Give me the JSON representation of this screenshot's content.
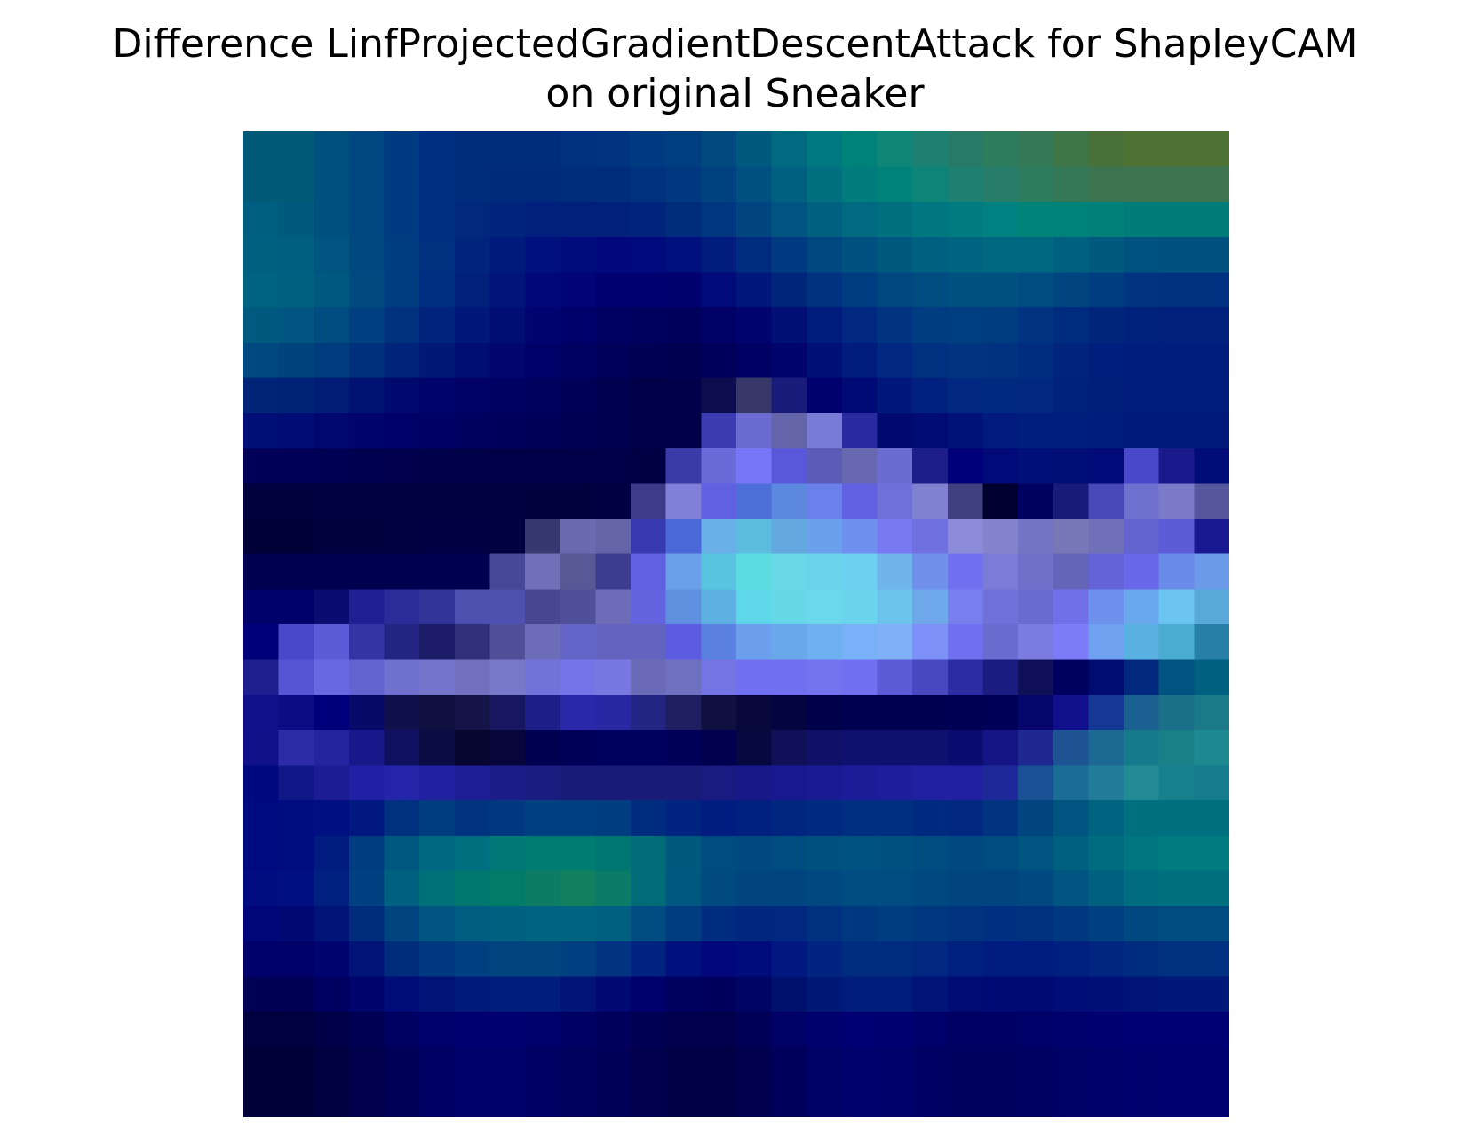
{
  "figure": {
    "title_line1": "Difference LinfProjectedGradientDescentAttack for ShapleyCAM",
    "title_line2": "on original Sneaker"
  },
  "image": {
    "description_name": "sneaker-attack-difference-heatmap",
    "grid_size": [
      28,
      28
    ],
    "grid_colors": [
      [
        "#005a78",
        "#005a78",
        "#00507e",
        "#004680",
        "#003a80",
        "#002e80",
        "#002c7c",
        "#002c7c",
        "#002c7c",
        "#003080",
        "#003480",
        "#003a80",
        "#003e80",
        "#004a80",
        "#005a80",
        "#006a80",
        "#007880",
        "#008278",
        "#0f8678",
        "#1e8070",
        "#287a68",
        "#2e7c5e",
        "#347858",
        "#3e7648",
        "#487038",
        "#4e7234",
        "#4e7234",
        "#4e7234"
      ],
      [
        "#005a78",
        "#005a78",
        "#00507e",
        "#004680",
        "#003a80",
        "#002e80",
        "#002c7c",
        "#002a7c",
        "#002a7c",
        "#002c7c",
        "#002e7c",
        "#003280",
        "#003880",
        "#004280",
        "#005080",
        "#006080",
        "#007080",
        "#007c7c",
        "#008278",
        "#0e8478",
        "#1e8070",
        "#287c6a",
        "#2e7c60",
        "#347858",
        "#3c7450",
        "#3e7450",
        "#3e7450",
        "#3e7450"
      ],
      [
        "#005e80",
        "#005a7e",
        "#00507e",
        "#004680",
        "#003a80",
        "#002e80",
        "#00287c",
        "#00247c",
        "#00207c",
        "#00207c",
        "#00207c",
        "#00247c",
        "#002c7c",
        "#003680",
        "#004480",
        "#005480",
        "#006080",
        "#006a80",
        "#007080",
        "#007680",
        "#007c80",
        "#008080",
        "#008278",
        "#008278",
        "#008078",
        "#007c78",
        "#007c78",
        "#007c78"
      ],
      [
        "#006080",
        "#005e80",
        "#005480",
        "#004880",
        "#003c80",
        "#003080",
        "#00247c",
        "#001a7c",
        "#00107c",
        "#000c7c",
        "#00087c",
        "#000a7c",
        "#00107c",
        "#001c7c",
        "#002c80",
        "#003a80",
        "#004680",
        "#005080",
        "#005a80",
        "#006080",
        "#006480",
        "#006880",
        "#006880",
        "#006080",
        "#005a80",
        "#005280",
        "#005080",
        "#005080"
      ],
      [
        "#006480",
        "#006080",
        "#005880",
        "#004a80",
        "#003c80",
        "#002e80",
        "#00207c",
        "#00147c",
        "#000878",
        "#000474",
        "#000070",
        "#000070",
        "#00006e",
        "#000a78",
        "#00187c",
        "#00267c",
        "#003280",
        "#003c80",
        "#004680",
        "#004c80",
        "#005080",
        "#005080",
        "#004c80",
        "#004480",
        "#003c80",
        "#003480",
        "#003080",
        "#003080"
      ],
      [
        "#005a80",
        "#005680",
        "#004c80",
        "#004080",
        "#00327e",
        "#00247c",
        "#001878",
        "#000e74",
        "#000470",
        "#00006a",
        "#000062",
        "#00005e",
        "#00005c",
        "#000066",
        "#00046e",
        "#001074",
        "#001c7c",
        "#002880",
        "#003480",
        "#003c80",
        "#003e80",
        "#003c80",
        "#003480",
        "#002c80",
        "#00267c",
        "#00227c",
        "#00207c",
        "#00207c"
      ],
      [
        "#004880",
        "#00447e",
        "#003c7e",
        "#00307c",
        "#00247a",
        "#001876",
        "#000e72",
        "#00066e",
        "#000068",
        "#000062",
        "#00005a",
        "#000054",
        "#000052",
        "#00005a",
        "#000064",
        "#00046c",
        "#001076",
        "#001c7c",
        "#002880",
        "#003080",
        "#003480",
        "#003280",
        "#002c80",
        "#00247c",
        "#001e7c",
        "#001c7c",
        "#001c7c",
        "#001c7c"
      ],
      [
        "#002478",
        "#002276",
        "#001c74",
        "#001272",
        "#000a6e",
        "#00046a",
        "#000066",
        "#000062",
        "#00005e",
        "#000058",
        "#000050",
        "#000048",
        "#00004a",
        "#0c0c4e",
        "#383868",
        "#1a1a7a",
        "#00006e",
        "#000a76",
        "#00187c",
        "#00227e",
        "#002880",
        "#002a80",
        "#00287e",
        "#00227c",
        "#001e7a",
        "#001c7a",
        "#001c7a",
        "#001c7a"
      ],
      [
        "#000e78",
        "#000c74",
        "#000870",
        "#00046c",
        "#000068",
        "#000064",
        "#000060",
        "#00005c",
        "#000058",
        "#000054",
        "#000050",
        "#000048",
        "#00004a",
        "#3c3cb0",
        "#6a6ad0",
        "#6464a8",
        "#7a7ad8",
        "#2a2aa0",
        "#000a6e",
        "#000c74",
        "#00127a",
        "#001a7e",
        "#001e7e",
        "#001e7c",
        "#001c7c",
        "#001a7a",
        "#001a7a",
        "#001a7a"
      ],
      [
        "#000058",
        "#000058",
        "#000054",
        "#000050",
        "#00004c",
        "#000048",
        "#000048",
        "#000048",
        "#000048",
        "#000048",
        "#000048",
        "#000044",
        "#3a3aa8",
        "#6a6ad8",
        "#7676f8",
        "#5858d8",
        "#5c5cb8",
        "#6868b0",
        "#6c6cd0",
        "#1e1e8a",
        "#00007a",
        "#000a78",
        "#00107a",
        "#000e78",
        "#000a78",
        "#4848c8",
        "#1a1a8c",
        "#000c78"
      ],
      [
        "#00003c",
        "#00003c",
        "#000040",
        "#000040",
        "#000040",
        "#000040",
        "#000040",
        "#000040",
        "#00003c",
        "#00003c",
        "#000044",
        "#3c3c88",
        "#8080d8",
        "#6060e0",
        "#4c70d8",
        "#5c88e0",
        "#6c80ec",
        "#6060e0",
        "#7070d8",
        "#8080d0",
        "#404080",
        "#000030",
        "#000060",
        "#1a1a7a",
        "#4848b8",
        "#7070d0",
        "#7a7ac8",
        "#56569c"
      ],
      [
        "#000038",
        "#000038",
        "#00003c",
        "#00003c",
        "#000040",
        "#000044",
        "#000044",
        "#000040",
        "#383870",
        "#6a6ab0",
        "#6464a8",
        "#3a3ab0",
        "#4a68d8",
        "#6ab0e8",
        "#5cbce0",
        "#64a8e0",
        "#6aa0ec",
        "#7090f0",
        "#7878f0",
        "#7070e0",
        "#8c8cd8",
        "#8484cc",
        "#7474c4",
        "#7878b8",
        "#7070b8",
        "#6464d0",
        "#5c5cd8",
        "#181890"
      ],
      [
        "#000050",
        "#000050",
        "#000050",
        "#000050",
        "#000050",
        "#000050",
        "#000050",
        "#484898",
        "#7070b8",
        "#585894",
        "#3c3c90",
        "#6060e0",
        "#6aa0e8",
        "#58c4e0",
        "#5cdce0",
        "#6ad8e8",
        "#6ad4ec",
        "#6cd0f0",
        "#70b4ec",
        "#7090ec",
        "#7070f0",
        "#7c7cd8",
        "#7070c8",
        "#6464b8",
        "#6464d8",
        "#6868e8",
        "#6a8ce8",
        "#6a9ae8"
      ],
      [
        "#00006a",
        "#000068",
        "#0c0c70",
        "#202094",
        "#2c2c98",
        "#343498",
        "#5050b0",
        "#5050b0",
        "#484890",
        "#505098",
        "#6c6cb8",
        "#6464e0",
        "#6090e0",
        "#5eb0e0",
        "#5ed8e8",
        "#66d8e8",
        "#6cd8ec",
        "#6ad4ec",
        "#6cc4ec",
        "#70a8ec",
        "#7880f0",
        "#7070d8",
        "#6a6ad0",
        "#7070e8",
        "#6c90ec",
        "#6aa8ee",
        "#6cc4f0",
        "#5aa8d8"
      ],
      [
        "#00007a",
        "#4848c8",
        "#5c5cd8",
        "#3434a4",
        "#242484",
        "#1c1c68",
        "#303078",
        "#505098",
        "#6c6cb8",
        "#6464c8",
        "#6464c0",
        "#6464c0",
        "#5c5ce0",
        "#5a80e0",
        "#6ca0ec",
        "#6aa8ec",
        "#6eb0f0",
        "#7ab0f8",
        "#80b0f8",
        "#7c90f8",
        "#7070f0",
        "#6c6cd0",
        "#7c7ce0",
        "#7c7cf8",
        "#70a0f0",
        "#5ab0e0",
        "#4aacd0",
        "#2880a8"
      ],
      [
        "#1e1e8e",
        "#5656d4",
        "#6868e4",
        "#6464d0",
        "#7070d0",
        "#7474cc",
        "#7070bc",
        "#7878c8",
        "#7272d8",
        "#7474e8",
        "#7878e0",
        "#6a6ab8",
        "#7070c0",
        "#7474e4",
        "#7070f0",
        "#7070f0",
        "#7474f0",
        "#7070f0",
        "#5c5cd8",
        "#4848c0",
        "#2c2ca4",
        "#1c1c80",
        "#101058",
        "#000060",
        "#000c70",
        "#00287c",
        "#005480",
        "#006080"
      ],
      [
        "#10108a",
        "#0c0c84",
        "#00007c",
        "#080868",
        "#10104c",
        "#101040",
        "#141448",
        "#181860",
        "#1e1e88",
        "#2828a8",
        "#2828a4",
        "#242484",
        "#1e1e60",
        "#101040",
        "#08083c",
        "#040440",
        "#00004a",
        "#000050",
        "#000050",
        "#000050",
        "#000054",
        "#000058",
        "#06066c",
        "#10108c",
        "#143894",
        "#1a6090",
        "#1a7088",
        "#1a7a88"
      ],
      [
        "#101088",
        "#2c2ca8",
        "#2424a0",
        "#18188a",
        "#101060",
        "#0c0c44",
        "#060630",
        "#06063c",
        "#000050",
        "#000058",
        "#000060",
        "#000060",
        "#000058",
        "#00004e",
        "#080840",
        "#101058",
        "#101068",
        "#101070",
        "#101070",
        "#101070",
        "#0c0c70",
        "#141484",
        "#1e2890",
        "#1e5494",
        "#1c6a94",
        "#147a8c",
        "#1a8088",
        "#1e8890"
      ],
      [
        "#000880",
        "#101888",
        "#1c1c94",
        "#2020a4",
        "#2424a8",
        "#2020a0",
        "#1e1e94",
        "#1c1c88",
        "#1c1c80",
        "#1a1a78",
        "#1a1a78",
        "#1a1a78",
        "#1a1a78",
        "#1a1a80",
        "#181888",
        "#181890",
        "#1a1a94",
        "#1c1c98",
        "#1e1e9c",
        "#2020a0",
        "#2020a0",
        "#1e2898",
        "#1a5094",
        "#1c6c98",
        "#207c98",
        "#228a94",
        "#16808c",
        "#147c8c"
      ],
      [
        "#000a80",
        "#000c80",
        "#001080",
        "#001880",
        "#003080",
        "#003c80",
        "#003480",
        "#003880",
        "#004080",
        "#004080",
        "#003c80",
        "#002c80",
        "#002480",
        "#001c80",
        "#002080",
        "#002680",
        "#002a80",
        "#002e80",
        "#002e80",
        "#002a80",
        "#002880",
        "#003480",
        "#004480",
        "#005480",
        "#006480",
        "#007080",
        "#007080",
        "#007080"
      ],
      [
        "#000a80",
        "#000c80",
        "#001c80",
        "#003c80",
        "#005880",
        "#006880",
        "#007080",
        "#007878",
        "#007c70",
        "#007c70",
        "#007670",
        "#006c78",
        "#005a80",
        "#004c80",
        "#004880",
        "#004c80",
        "#005080",
        "#005280",
        "#005080",
        "#004c80",
        "#004880",
        "#004c80",
        "#005480",
        "#006080",
        "#006c80",
        "#007680",
        "#007c80",
        "#007c80"
      ],
      [
        "#000c80",
        "#001080",
        "#002080",
        "#004080",
        "#006080",
        "#007078",
        "#007870",
        "#007c68",
        "#0c7c64",
        "#10805e",
        "#0a7c68",
        "#006c78",
        "#005880",
        "#004a80",
        "#004480",
        "#004480",
        "#004880",
        "#004c80",
        "#004c80",
        "#004880",
        "#004480",
        "#004480",
        "#004880",
        "#005480",
        "#006080",
        "#006c80",
        "#007080",
        "#007080"
      ],
      [
        "#000678",
        "#000874",
        "#001478",
        "#002c7c",
        "#004480",
        "#005480",
        "#005c80",
        "#006080",
        "#006480",
        "#006480",
        "#006080",
        "#004c80",
        "#003c80",
        "#002c80",
        "#002680",
        "#002880",
        "#003080",
        "#003880",
        "#003c80",
        "#003880",
        "#003480",
        "#002e80",
        "#003080",
        "#003880",
        "#004080",
        "#004880",
        "#004c80",
        "#004c80"
      ],
      [
        "#00006a",
        "#000068",
        "#000470",
        "#001478",
        "#002c7c",
        "#003880",
        "#004080",
        "#004480",
        "#004480",
        "#004080",
        "#003480",
        "#002480",
        "#00107c",
        "#00087c",
        "#000c7c",
        "#001880",
        "#002480",
        "#002c80",
        "#002c80",
        "#002880",
        "#002080",
        "#001c80",
        "#001c80",
        "#002080",
        "#002680",
        "#002c80",
        "#003080",
        "#003080"
      ],
      [
        "#000054",
        "#000054",
        "#000060",
        "#00046c",
        "#000c78",
        "#001478",
        "#001a7c",
        "#001c7c",
        "#001c7c",
        "#001478",
        "#000874",
        "#00006c",
        "#000060",
        "#00005c",
        "#000464",
        "#00106c",
        "#001876",
        "#001c7c",
        "#001c7c",
        "#001478",
        "#000c74",
        "#000a74",
        "#000a74",
        "#000c78",
        "#001078",
        "#001478",
        "#001878",
        "#001878"
      ],
      [
        "#000040",
        "#00003e",
        "#000048",
        "#000054",
        "#000062",
        "#00006c",
        "#000070",
        "#000070",
        "#00006c",
        "#000064",
        "#00005c",
        "#000054",
        "#00004c",
        "#00004c",
        "#000058",
        "#000066",
        "#00006e",
        "#000072",
        "#000070",
        "#00006a",
        "#000064",
        "#000064",
        "#000068",
        "#00006c",
        "#000070",
        "#000072",
        "#000074",
        "#000074"
      ],
      [
        "#000038",
        "#000038",
        "#000040",
        "#00004c",
        "#000058",
        "#000064",
        "#00006a",
        "#00006a",
        "#000064",
        "#00005e",
        "#000058",
        "#00004e",
        "#000046",
        "#000046",
        "#00004e",
        "#00005c",
        "#000066",
        "#00006c",
        "#00006a",
        "#000064",
        "#000060",
        "#000060",
        "#000062",
        "#000066",
        "#00006a",
        "#00006e",
        "#000070",
        "#000070"
      ],
      [
        "#000038",
        "#000038",
        "#000040",
        "#00004c",
        "#000058",
        "#000064",
        "#00006a",
        "#00006a",
        "#000064",
        "#00005e",
        "#000058",
        "#00004e",
        "#000046",
        "#000046",
        "#00004e",
        "#00005c",
        "#000066",
        "#00006c",
        "#00006a",
        "#000064",
        "#000060",
        "#000060",
        "#000062",
        "#000066",
        "#00006a",
        "#00006e",
        "#000070",
        "#000070"
      ]
    ]
  }
}
